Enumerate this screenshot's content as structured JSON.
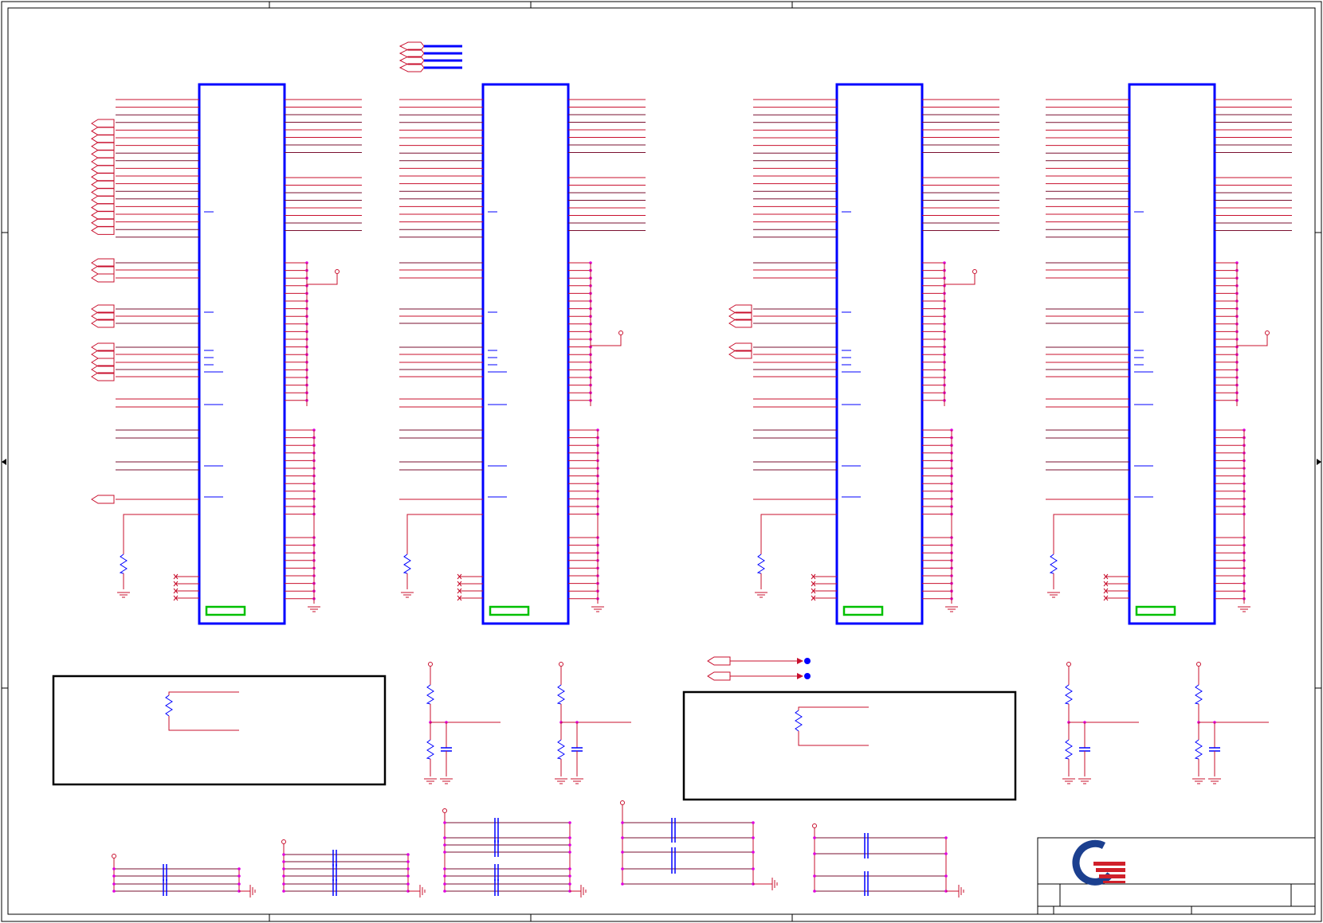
{
  "sheet": {
    "background": "#ffffff",
    "border_color": "#000000",
    "wire_color": "#c8102e",
    "bus_color": "#7a1030",
    "component_color": "#0000ff",
    "junction_color": "#e000e0",
    "marker_color": "#00c000"
  },
  "chips": [
    {
      "id": "chip-1",
      "pin_count_left": 40,
      "pin_count_right": 40
    },
    {
      "id": "chip-2",
      "pin_count_left": 40,
      "pin_count_right": 40
    },
    {
      "id": "chip-3",
      "pin_count_left": 40,
      "pin_count_right": 40
    },
    {
      "id": "chip-4",
      "pin_count_left": 40,
      "pin_count_right": 40
    }
  ],
  "title_block": {
    "logo_icon": "quanta-q-logo-icon",
    "logo_colors": {
      "ring": "#1b3f8f",
      "stripes": "#d0202a"
    }
  }
}
